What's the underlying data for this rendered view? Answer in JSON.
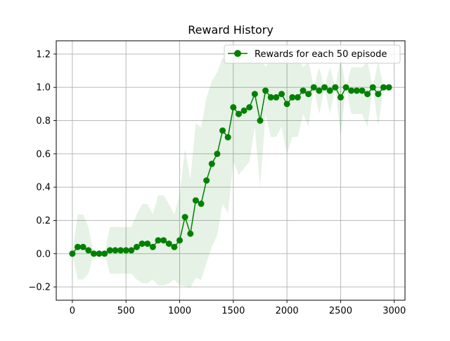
{
  "chart_data": {
    "type": "line",
    "title": "Reward History",
    "xlabel": "",
    "ylabel": "",
    "xlim": [
      -150,
      3100
    ],
    "ylim": [
      -0.28,
      1.28
    ],
    "x_ticks": [
      0,
      500,
      1000,
      1500,
      2000,
      2500,
      3000
    ],
    "x_tick_labels": [
      "0",
      "500",
      "1000",
      "1500",
      "2000",
      "2500",
      "3000"
    ],
    "y_ticks": [
      -0.2,
      0.0,
      0.2,
      0.4,
      0.6,
      0.8,
      1.0,
      1.2
    ],
    "y_tick_labels": [
      "−0.2",
      "0.0",
      "0.2",
      "0.4",
      "0.6",
      "0.8",
      "1.0",
      "1.2"
    ],
    "grid": true,
    "legend_position": "top-right",
    "series": [
      {
        "name": "Rewards for each 50 episode",
        "color": "#008000",
        "marker": "circle",
        "x": [
          0,
          50,
          100,
          150,
          200,
          250,
          300,
          350,
          400,
          450,
          500,
          550,
          600,
          650,
          700,
          750,
          800,
          850,
          900,
          950,
          1000,
          1050,
          1100,
          1150,
          1200,
          1250,
          1300,
          1350,
          1400,
          1450,
          1500,
          1550,
          1600,
          1650,
          1700,
          1750,
          1800,
          1850,
          1900,
          1950,
          2000,
          2050,
          2100,
          2150,
          2200,
          2250,
          2300,
          2350,
          2400,
          2450,
          2500,
          2550,
          2600,
          2650,
          2700,
          2750,
          2800,
          2850,
          2900,
          2950
        ],
        "values": [
          0.0,
          0.04,
          0.04,
          0.02,
          0.0,
          0.0,
          0.0,
          0.02,
          0.02,
          0.02,
          0.02,
          0.02,
          0.04,
          0.06,
          0.06,
          0.04,
          0.08,
          0.08,
          0.06,
          0.04,
          0.08,
          0.22,
          0.12,
          0.32,
          0.3,
          0.44,
          0.54,
          0.6,
          0.74,
          0.7,
          0.88,
          0.84,
          0.86,
          0.88,
          0.96,
          0.8,
          0.98,
          0.94,
          0.94,
          0.96,
          0.9,
          0.94,
          0.94,
          0.98,
          0.96,
          1.0,
          0.98,
          1.0,
          0.98,
          1.0,
          0.94,
          1.0,
          0.98,
          0.98,
          0.98,
          0.96,
          1.0,
          0.96,
          1.0,
          1.0
        ],
        "band_color": "#008000",
        "band_opacity": 0.1,
        "band_upper": [
          0.0,
          0.236,
          0.236,
          0.16,
          0.0,
          0.0,
          0.0,
          0.16,
          0.16,
          0.16,
          0.16,
          0.16,
          0.236,
          0.298,
          0.298,
          0.236,
          0.351,
          0.351,
          0.298,
          0.236,
          0.351,
          0.634,
          0.445,
          0.786,
          0.758,
          0.936,
          1.038,
          1.09,
          1.179,
          1.158,
          1.205,
          1.207,
          1.207,
          1.205,
          1.156,
          1.2,
          1.12,
          1.178,
          1.178,
          1.156,
          1.2,
          1.178,
          1.178,
          1.12,
          1.156,
          1.0,
          1.12,
          1.0,
          1.12,
          1.0,
          1.178,
          1.0,
          1.12,
          1.12,
          1.12,
          1.156,
          1.0,
          1.156,
          1.0,
          1.0
        ],
        "band_lower": [
          0.0,
          -0.156,
          -0.156,
          -0.12,
          0.0,
          0.0,
          0.0,
          -0.12,
          -0.12,
          -0.12,
          -0.12,
          -0.12,
          -0.156,
          -0.178,
          -0.178,
          -0.156,
          -0.191,
          -0.191,
          -0.178,
          -0.156,
          -0.191,
          -0.194,
          -0.205,
          -0.146,
          -0.158,
          -0.056,
          0.042,
          0.11,
          0.301,
          0.242,
          0.555,
          0.473,
          0.513,
          0.555,
          0.764,
          0.4,
          0.84,
          0.702,
          0.702,
          0.764,
          0.6,
          0.702,
          0.702,
          0.84,
          0.764,
          1.0,
          0.84,
          1.0,
          0.84,
          1.0,
          0.702,
          1.0,
          0.84,
          0.84,
          0.84,
          0.764,
          1.0,
          0.764,
          1.0,
          1.0
        ]
      }
    ]
  }
}
